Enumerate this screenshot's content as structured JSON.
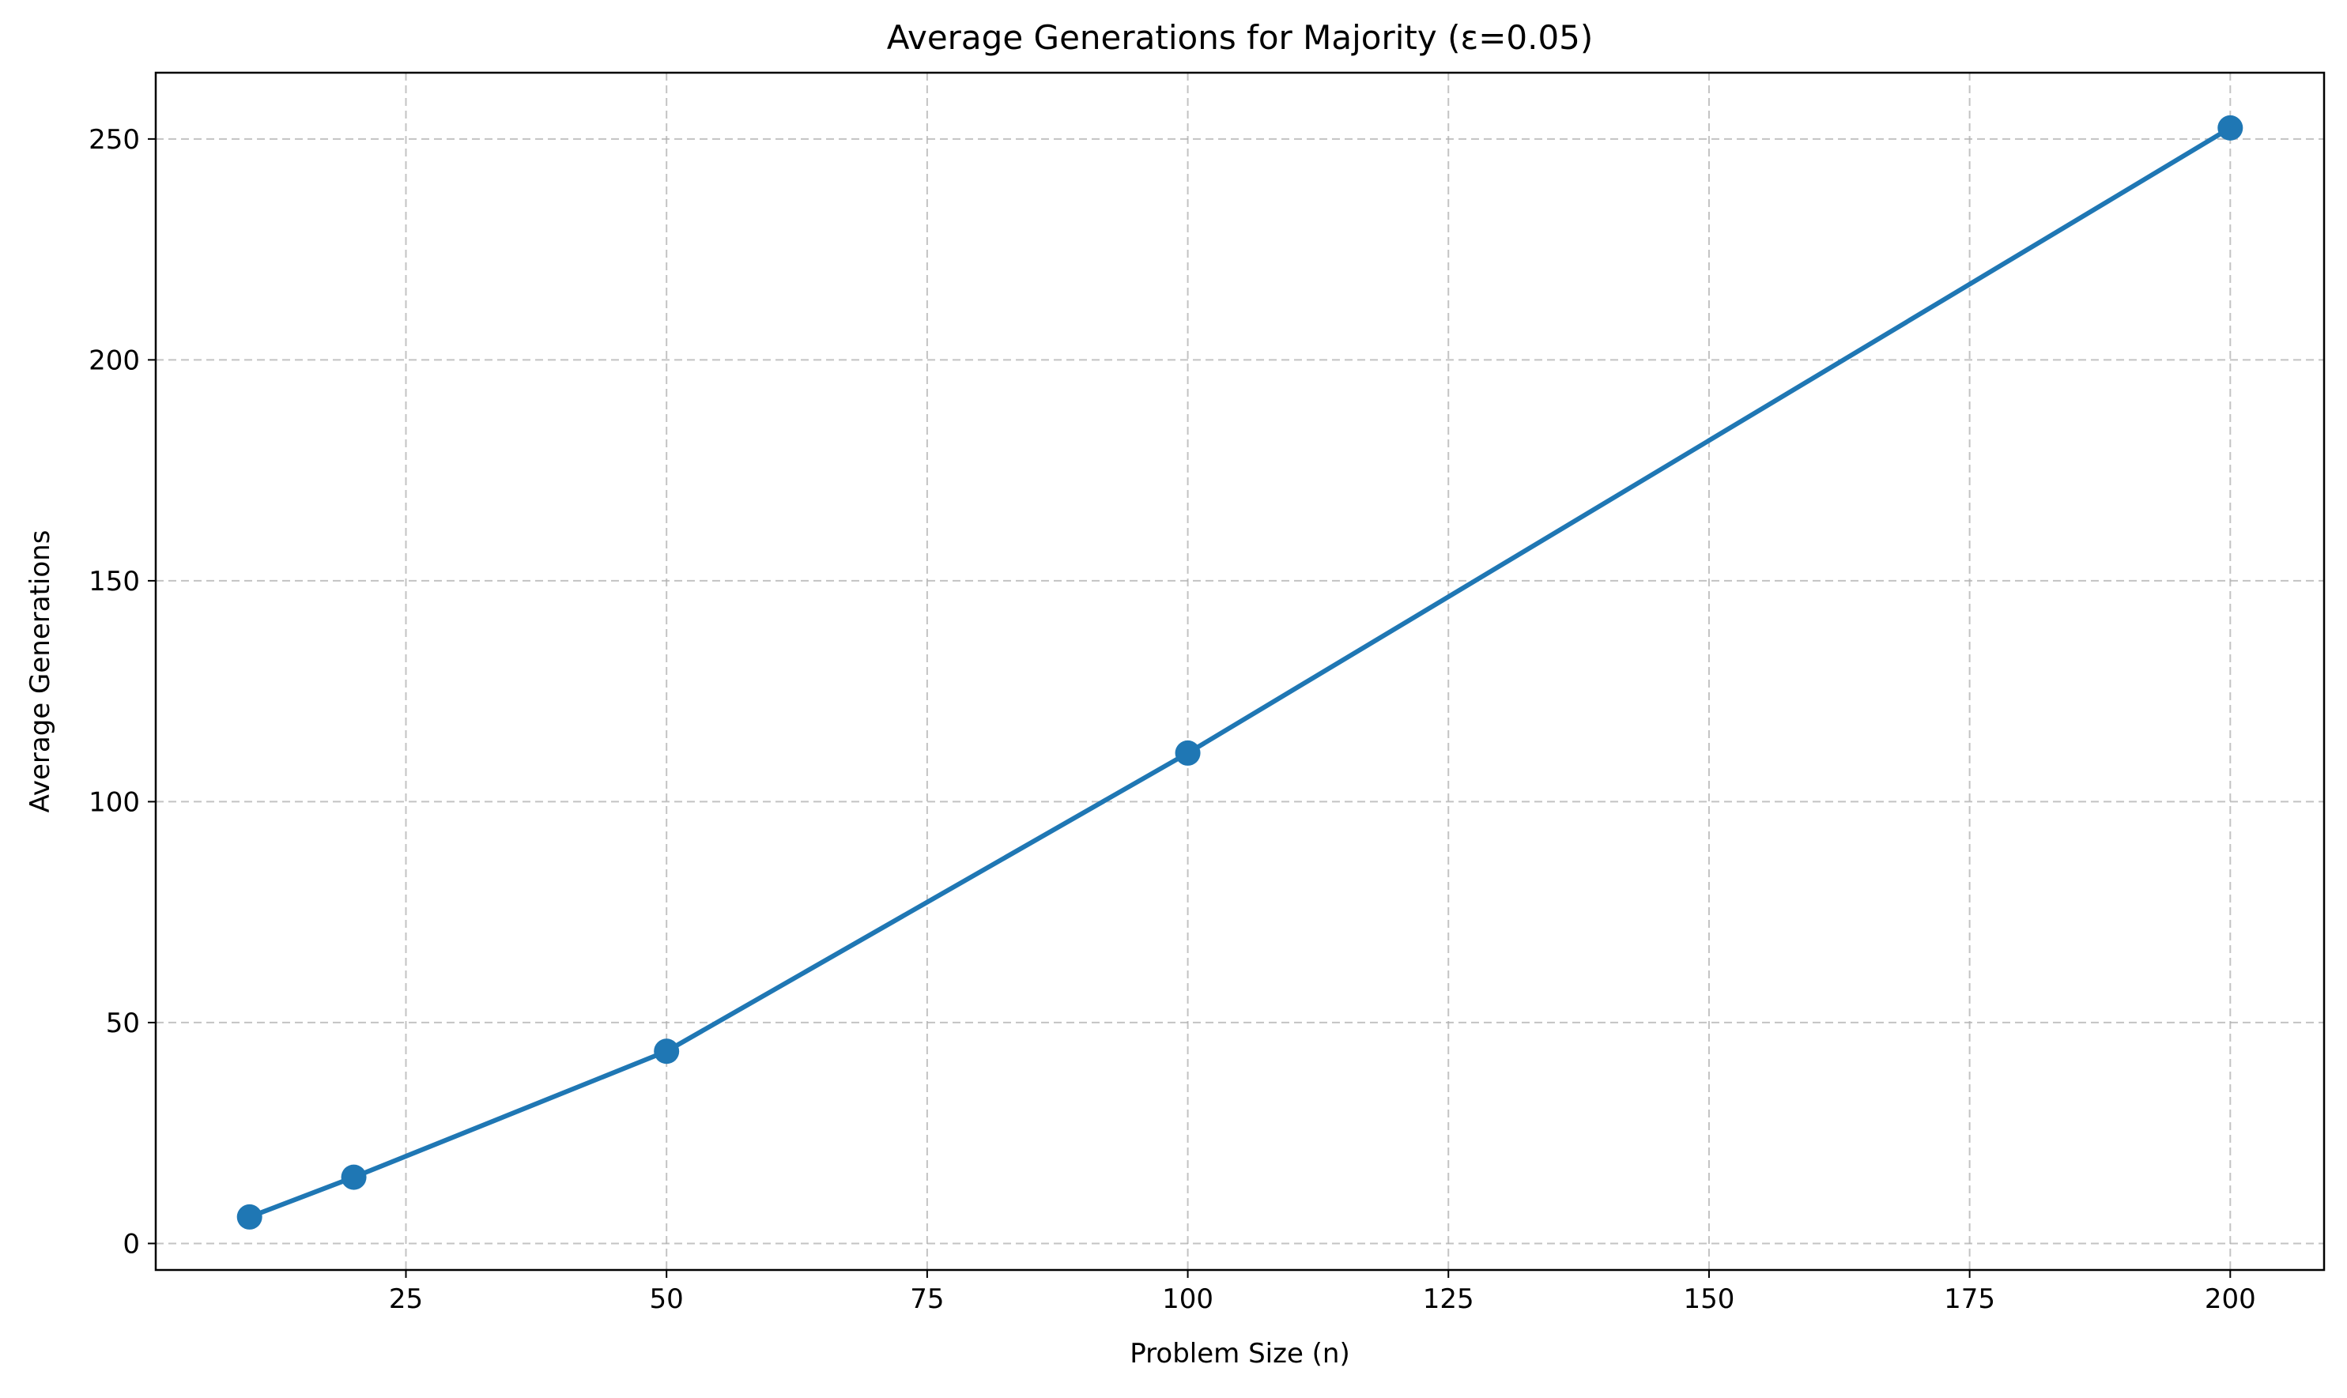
{
  "chart_data": {
    "type": "line",
    "title": "Average Generations for Majority (ε=0.05)",
    "xlabel": "Problem Size (n)",
    "ylabel": "Average Generations",
    "xlim": [
      1,
      209
    ],
    "ylim": [
      -6,
      265
    ],
    "xticks": [
      25,
      50,
      75,
      100,
      125,
      150,
      175,
      200
    ],
    "yticks": [
      0,
      50,
      100,
      150,
      200,
      250
    ],
    "grid": true,
    "legend": "none",
    "series": [
      {
        "color": "#1f77b4",
        "x": [
          10,
          20,
          50,
          100,
          200
        ],
        "y": [
          6,
          15,
          43.5,
          111,
          252.5
        ]
      }
    ]
  }
}
